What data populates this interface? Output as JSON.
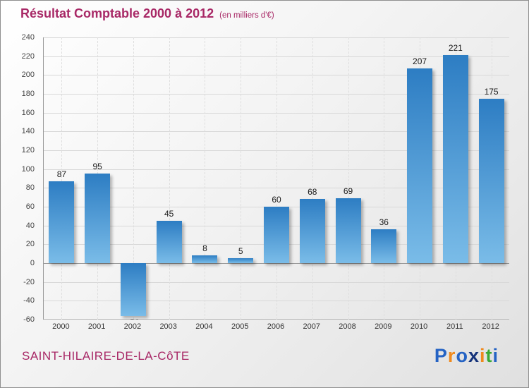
{
  "header": {
    "title": "Résultat Comptable 2000 à 2012",
    "subtitle": "(en milliers d'€)"
  },
  "footer": {
    "place": "SAINT-HILAIRE-DE-LA-CôTE",
    "logo_letters": [
      {
        "char": "P",
        "color": "#2563c4"
      },
      {
        "char": "r",
        "color": "#f08a1d"
      },
      {
        "char": "o",
        "color": "#2563c4"
      },
      {
        "char": "x",
        "color": "#15337a"
      },
      {
        "char": "i",
        "color": "#f08a1d"
      },
      {
        "char": "t",
        "color": "#3aaa35"
      },
      {
        "char": "i",
        "color": "#2563c4"
      }
    ]
  },
  "chart_data": {
    "type": "bar",
    "title": "Résultat Comptable 2000 à 2012",
    "subtitle": "(en milliers d'€)",
    "categories": [
      "2000",
      "2001",
      "2002",
      "2003",
      "2004",
      "2005",
      "2006",
      "2007",
      "2008",
      "2009",
      "2010",
      "2011",
      "2012"
    ],
    "values": [
      87,
      95,
      -56,
      45,
      8,
      5,
      60,
      68,
      69,
      36,
      207,
      221,
      175
    ],
    "xlabel": "",
    "ylabel": "",
    "ylim": [
      -60,
      240
    ],
    "ytick_step": 20,
    "grid": true,
    "legend": false,
    "bar_color_top": "#2d7dc3",
    "bar_color_bottom": "#7abce8",
    "accent_color": "#a82866"
  }
}
